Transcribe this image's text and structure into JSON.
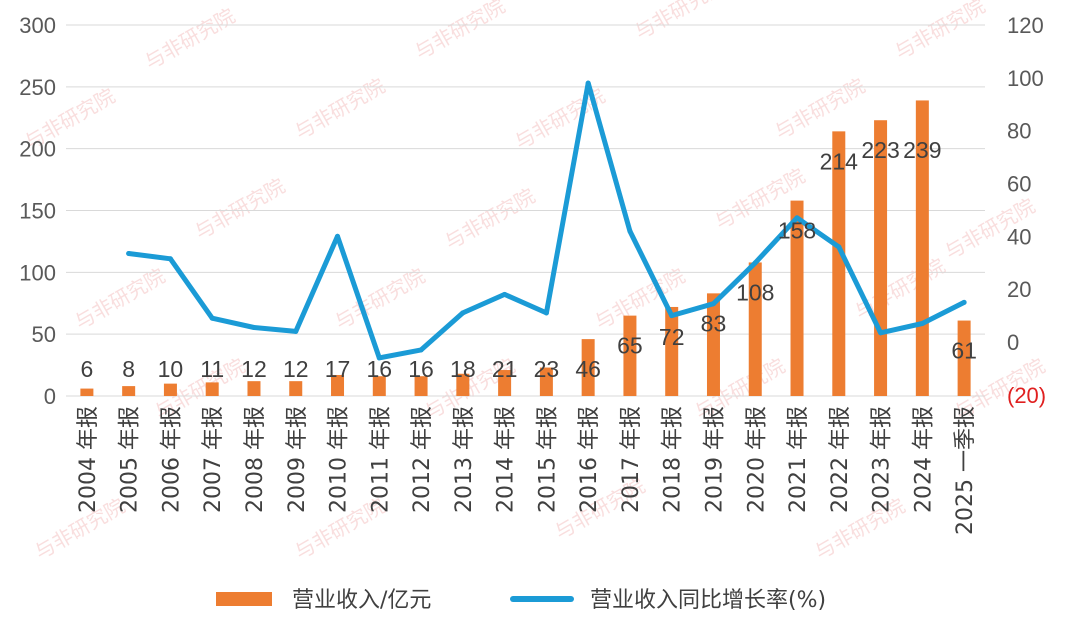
{
  "chart_data": {
    "type": "bar+line",
    "categories": [
      "2004 年报",
      "2005 年报",
      "2006 年报",
      "2007 年报",
      "2008 年报",
      "2009 年报",
      "2010 年报",
      "2011 年报",
      "2012 年报",
      "2013 年报",
      "2014 年报",
      "2015 年报",
      "2016 年报",
      "2017 年报",
      "2018 年报",
      "2019 年报",
      "2020 年报",
      "2021 年报",
      "2022 年报",
      "2023 年报",
      "2024 年报",
      "2025 一季报"
    ],
    "series": [
      {
        "name": "营业收入/亿元",
        "type": "bar",
        "axis": "left",
        "color": "#ed7d31",
        "values": [
          6,
          8,
          10,
          11,
          12,
          12,
          17,
          16,
          16,
          18,
          21,
          23,
          46,
          65,
          72,
          83,
          108,
          158,
          214,
          223,
          239,
          61
        ]
      },
      {
        "name": "营业收入同比增长率(%)",
        "type": "line",
        "axis": "right",
        "color": "#1b9bd6",
        "values": [
          null,
          33.5,
          31.5,
          9,
          5.5,
          4,
          40,
          -6,
          -3,
          11,
          18,
          11,
          98,
          42,
          10,
          14.5,
          30,
          47,
          36,
          3.5,
          7,
          15
        ]
      }
    ],
    "y_left": {
      "min": 0,
      "max": 300,
      "ticks": [
        "0",
        "50",
        "100",
        "150",
        "200",
        "250",
        "300"
      ]
    },
    "y_right": {
      "min": -20,
      "max": 120,
      "ticks": [
        "(20)",
        "0",
        "20",
        "40",
        "60",
        "80",
        "100",
        "120"
      ]
    },
    "grid": "horizontal",
    "legend": "bottom",
    "watermark": "与非研究院"
  }
}
